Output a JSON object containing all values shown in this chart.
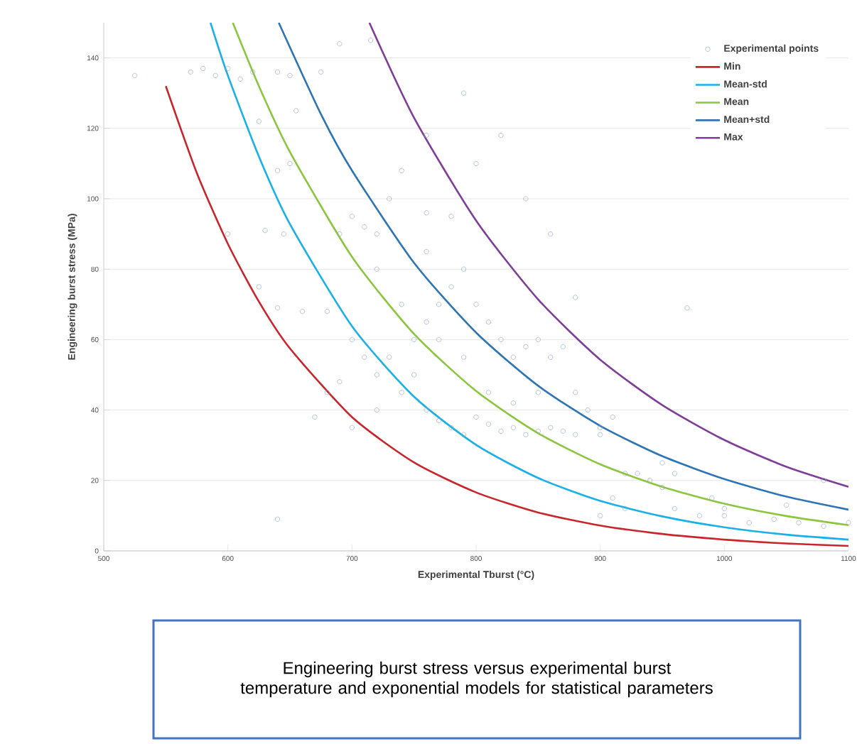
{
  "chart_data": {
    "type": "scatter",
    "xlabel": "Experimental Tburst (°C)",
    "ylabel": "Engineering burst stress (MPa)",
    "annotations": [
      "Engineering burst stress versus experimental burst temperature and exponential models for statistical parameters"
    ],
    "xlim": [
      500,
      1100
    ],
    "ylim": [
      0,
      150
    ],
    "xticks": [
      500,
      600,
      700,
      800,
      900,
      1000,
      1100
    ],
    "yticks": [
      0,
      20,
      40,
      60,
      80,
      100,
      120,
      140
    ],
    "grid": "y",
    "legend": "top right",
    "series": [
      {
        "name": "Experimental points",
        "marker": "circle",
        "color": "#8fa4c4",
        "x": [
          525,
          570,
          580,
          590,
          600,
          610,
          620,
          640,
          650,
          675,
          690,
          715,
          655,
          625,
          640,
          650,
          600,
          630,
          645,
          640,
          625,
          660,
          680,
          690,
          700,
          710,
          720,
          730,
          740,
          760,
          780,
          800,
          820,
          790,
          760,
          700,
          710,
          720,
          690,
          680,
          670,
          700,
          720,
          740,
          750,
          760,
          770,
          780,
          790,
          800,
          810,
          820,
          830,
          840,
          850,
          860,
          870,
          880,
          890,
          900,
          910,
          760,
          770,
          780,
          790,
          800,
          810,
          820,
          830,
          840,
          850,
          860,
          870,
          880,
          900,
          920,
          930,
          940,
          950,
          960,
          900,
          910,
          920,
          960,
          980,
          1000,
          1020,
          1040,
          1060,
          1080,
          1100,
          970,
          1000,
          640,
          860,
          840,
          880,
          750,
          730,
          810,
          790,
          770,
          740,
          720,
          760,
          850,
          830,
          950,
          990,
          1050,
          1080
        ],
        "values": [
          135,
          136,
          137,
          135,
          137,
          134,
          136,
          136,
          135,
          136,
          144,
          145,
          125,
          122,
          108,
          110,
          90,
          91,
          90,
          69,
          75,
          68,
          68,
          90,
          95,
          92,
          90,
          100,
          108,
          96,
          95,
          110,
          118,
          130,
          118,
          60,
          55,
          50,
          48,
          45,
          38,
          35,
          40,
          45,
          60,
          65,
          70,
          75,
          80,
          70,
          65,
          60,
          55,
          58,
          60,
          55,
          58,
          45,
          40,
          35,
          38,
          40,
          37,
          35,
          33,
          38,
          36,
          34,
          35,
          33,
          34,
          35,
          34,
          33,
          33,
          22,
          22,
          20,
          18,
          22,
          10,
          15,
          12,
          12,
          10,
          10,
          8,
          9,
          8,
          7,
          8,
          69,
          12,
          9,
          90,
          100,
          72,
          50,
          55,
          45,
          55,
          60,
          70,
          80,
          85,
          45,
          42,
          25,
          15,
          13,
          20
        ]
      },
      {
        "name": "Min",
        "type": "line",
        "marker": "none",
        "color": "#c8262c",
        "x": [
          550,
          575,
          600,
          625,
          650,
          700,
          750,
          800,
          850,
          900,
          950,
          1000,
          1050,
          1100
        ],
        "values": [
          132,
          107.3,
          87.2,
          70.8,
          57.5,
          38.0,
          25.1,
          16.6,
          10.9,
          7.2,
          4.8,
          3.2,
          2.1,
          1.4
        ]
      },
      {
        "name": "Mean-std",
        "type": "line",
        "marker": "none",
        "color": "#1ab0e8",
        "x": [
          586,
          600,
          625,
          650,
          700,
          750,
          800,
          850,
          900,
          950,
          1000,
          1050,
          1100
        ],
        "values": [
          150,
          135,
          112,
          92.8,
          63.8,
          43.8,
          30.1,
          20.7,
          14.2,
          9.8,
          6.7,
          4.6,
          3.2
        ]
      },
      {
        "name": "Mean",
        "type": "line",
        "marker": "none",
        "color": "#8cc63f",
        "x": [
          604,
          625,
          650,
          700,
          750,
          800,
          850,
          900,
          950,
          1000,
          1050,
          1100
        ],
        "values": [
          150,
          132,
          113.3,
          83.5,
          61.6,
          45.4,
          33.4,
          24.6,
          18.2,
          13.4,
          9.9,
          7.3
        ]
      },
      {
        "name": "Mean+std",
        "type": "line",
        "marker": "none",
        "color": "#2e75b6",
        "x": [
          641,
          675,
          700,
          750,
          800,
          850,
          900,
          950,
          1000,
          1050,
          1100
        ],
        "values": [
          150,
          124,
          108,
          81.8,
          62.0,
          46.9,
          35.5,
          26.9,
          20.4,
          15.4,
          11.7
        ]
      },
      {
        "name": "Max",
        "type": "line",
        "marker": "none",
        "color": "#7f3f98",
        "x": [
          714,
          750,
          800,
          850,
          900,
          950,
          1000,
          1050,
          1100
        ],
        "values": [
          150,
          123,
          93.8,
          71.4,
          54.3,
          41.4,
          31.5,
          23.9,
          18.2
        ]
      }
    ]
  }
}
